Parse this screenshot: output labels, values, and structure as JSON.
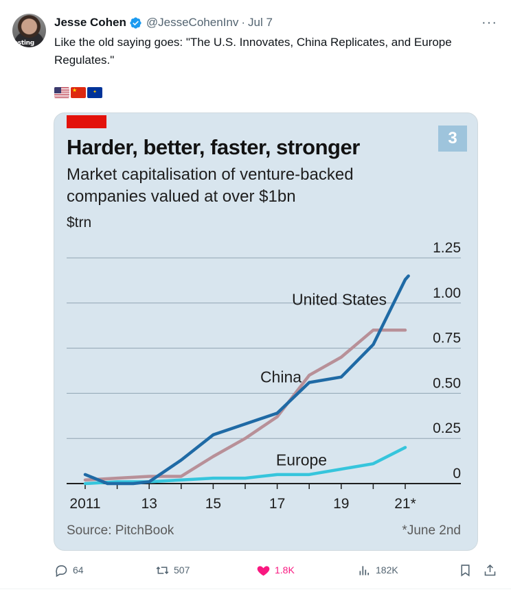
{
  "tweet": {
    "author_name": "Jesse Cohen",
    "handle": "@JesseCohenInv",
    "separator": "·",
    "date": "Jul 7",
    "avatar_text": "esting",
    "more_label": "···",
    "text": "Like the old saying goes: \"The U.S. Innovates, China Replicates, and Europe Regulates.\"",
    "flags": [
      "us-flag-icon",
      "china-flag-icon",
      "eu-flag-icon"
    ],
    "verified_color": "#1d9bf0"
  },
  "card": {
    "badge": "3",
    "title": "Harder, better, faster, stronger",
    "subtitle": "Market capitalisation of venture-backed companies valued at over $1bn",
    "unit": "$trn",
    "source": "Source: PitchBook",
    "footnote": "*June 2nd"
  },
  "chart_data": {
    "type": "line",
    "x_ticks": [
      "2011",
      "13",
      "15",
      "17",
      "19",
      "21*"
    ],
    "y_ticks": [
      "0",
      "0.25",
      "0.50",
      "0.75",
      "1.00",
      "1.25"
    ],
    "ylim": [
      0,
      1.25
    ],
    "xlim": [
      2011,
      2021.4
    ],
    "grid": true,
    "series": [
      {
        "name": "United States",
        "color": "#1f6aa5",
        "x": [
          2011,
          2011.7,
          2012.5,
          2013,
          2014,
          2015,
          2016,
          2017,
          2018,
          2019,
          2020,
          2021,
          2021.1
        ],
        "values": [
          0.05,
          0.0,
          0.0,
          0.01,
          0.13,
          0.27,
          0.33,
          0.39,
          0.56,
          0.59,
          0.77,
          1.13,
          1.15
        ]
      },
      {
        "name": "China",
        "color": "#b89098",
        "x": [
          2011,
          2012,
          2013,
          2014,
          2015,
          2016,
          2017,
          2018,
          2019,
          2020,
          2021
        ],
        "values": [
          0.02,
          0.03,
          0.04,
          0.04,
          0.15,
          0.25,
          0.37,
          0.6,
          0.7,
          0.85,
          0.85
        ]
      },
      {
        "name": "Europe",
        "color": "#36c5dc",
        "x": [
          2011,
          2012,
          2013,
          2014,
          2015,
          2016,
          2017,
          2018,
          2019,
          2020,
          2021
        ],
        "values": [
          0.0,
          0.01,
          0.01,
          0.02,
          0.03,
          0.03,
          0.05,
          0.05,
          0.08,
          0.11,
          0.2
        ]
      }
    ]
  },
  "actions": {
    "replies": "64",
    "retweets": "507",
    "likes": "1.8K",
    "views": "182K"
  }
}
